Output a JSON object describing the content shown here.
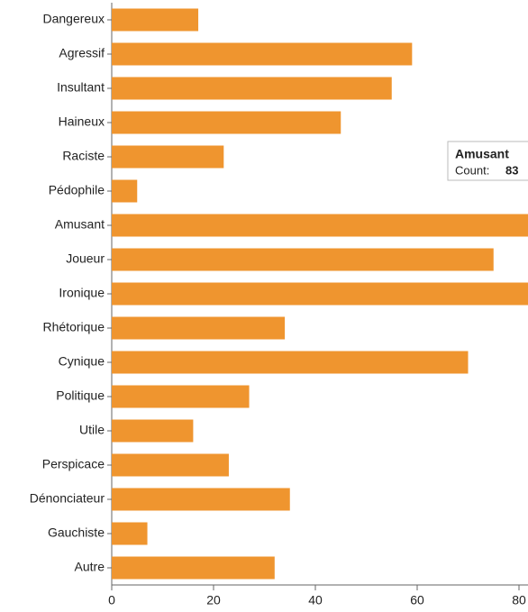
{
  "chart_data": {
    "type": "bar",
    "orientation": "horizontal",
    "categories": [
      "Dangereux",
      "Agressif",
      "Insultant",
      "Haineux",
      "Raciste",
      "Pédophile",
      "Amusant",
      "Joueur",
      "Ironique",
      "Rhétorique",
      "Cynique",
      "Politique",
      "Utile",
      "Perspicace",
      "Dénonciateur",
      "Gauchiste",
      "Autre"
    ],
    "values": [
      17,
      59,
      55,
      45,
      22,
      5,
      83,
      75,
      82,
      34,
      70,
      27,
      16,
      23,
      35,
      7,
      32
    ],
    "color": "#ef952f",
    "xlim": [
      0,
      80
    ],
    "xticks": [
      0,
      20,
      40,
      60,
      80
    ],
    "tooltip": {
      "label": "Count:"
    }
  }
}
